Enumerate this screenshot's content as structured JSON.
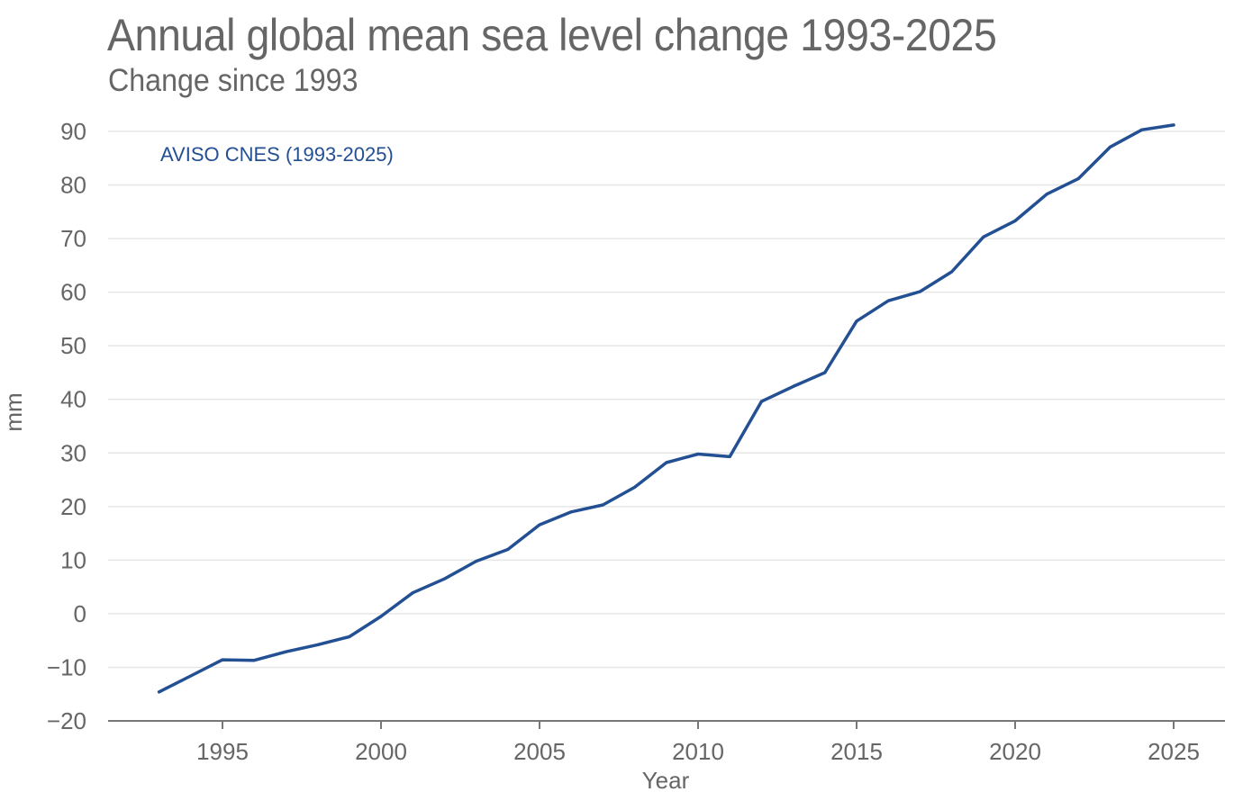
{
  "chart_data": {
    "type": "line",
    "title": "Annual global mean sea level change 1993-2025",
    "subtitle": "Change since 1993",
    "xlabel": "Year",
    "ylabel": "mm",
    "xlim": [
      1991.8,
      2027.2
    ],
    "ylim": [
      -20,
      90
    ],
    "x_ticks": [
      1995,
      2000,
      2005,
      2010,
      2015,
      2020,
      2025
    ],
    "x_tick_labels": [
      "1995",
      "2000",
      "2005",
      "2010",
      "2015",
      "2020",
      "2025"
    ],
    "y_ticks": [
      -20,
      -10,
      0,
      10,
      20,
      30,
      40,
      50,
      60,
      70,
      80,
      90
    ],
    "y_tick_labels": [
      "−20",
      "−10",
      "0",
      "10",
      "20",
      "30",
      "40",
      "50",
      "60",
      "70",
      "80",
      "90"
    ],
    "grid": "horizontal",
    "legend_placement": "top-left",
    "series": [
      {
        "name": "AVISO CNES (1993-2025)",
        "color": "#234f93",
        "x": [
          1993,
          1994,
          1995,
          1996,
          1997,
          1998,
          1999,
          2000,
          2001,
          2002,
          2003,
          2004,
          2005,
          2006,
          2007,
          2008,
          2009,
          2010,
          2011,
          2012,
          2013,
          2014,
          2015,
          2016,
          2017,
          2018,
          2019,
          2020,
          2021,
          2022,
          2023,
          2024,
          2025
        ],
        "values": [
          -14.6,
          -11.6,
          -8.6,
          -8.7,
          -7.1,
          -5.8,
          -4.3,
          -0.5,
          3.9,
          6.5,
          9.8,
          12.0,
          16.6,
          19.0,
          20.3,
          23.6,
          28.2,
          29.8,
          29.3,
          39.6,
          42.4,
          45.0,
          54.6,
          58.4,
          60.1,
          63.8,
          70.3,
          73.3,
          78.3,
          81.2,
          87.1,
          90.3,
          91.2
        ]
      }
    ]
  },
  "colors": {
    "text": "#666666",
    "grid": "#e6e6e6",
    "axis": "#777777",
    "series": "#234f93"
  }
}
